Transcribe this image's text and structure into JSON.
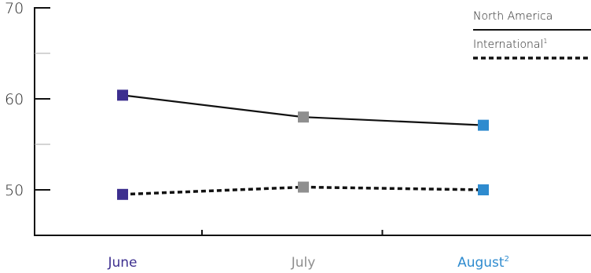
{
  "chart_data": {
    "type": "line",
    "title": "",
    "xlabel": "",
    "ylabel": "",
    "categories": [
      "June",
      "July",
      "August"
    ],
    "category_superscripts": [
      "",
      "",
      "2"
    ],
    "category_colors": [
      "#3d2f8f",
      "#8f8f8f",
      "#2e8bcf"
    ],
    "ylim": [
      45,
      70
    ],
    "yticks": [
      50,
      60,
      70
    ],
    "minor_yticks": [
      55,
      65
    ],
    "grid": false,
    "legend_position": "top-right",
    "series": [
      {
        "name": "North America",
        "name_superscript": "",
        "line_style": "solid",
        "values": [
          60.4,
          58.0,
          57.1
        ]
      },
      {
        "name": "International",
        "name_superscript": "1",
        "line_style": "dotted",
        "values": [
          49.5,
          50.3,
          50.0
        ]
      }
    ],
    "colors": {
      "line": "#111111",
      "axis": "#111111",
      "minor_tick": "#aaaaaa"
    }
  }
}
